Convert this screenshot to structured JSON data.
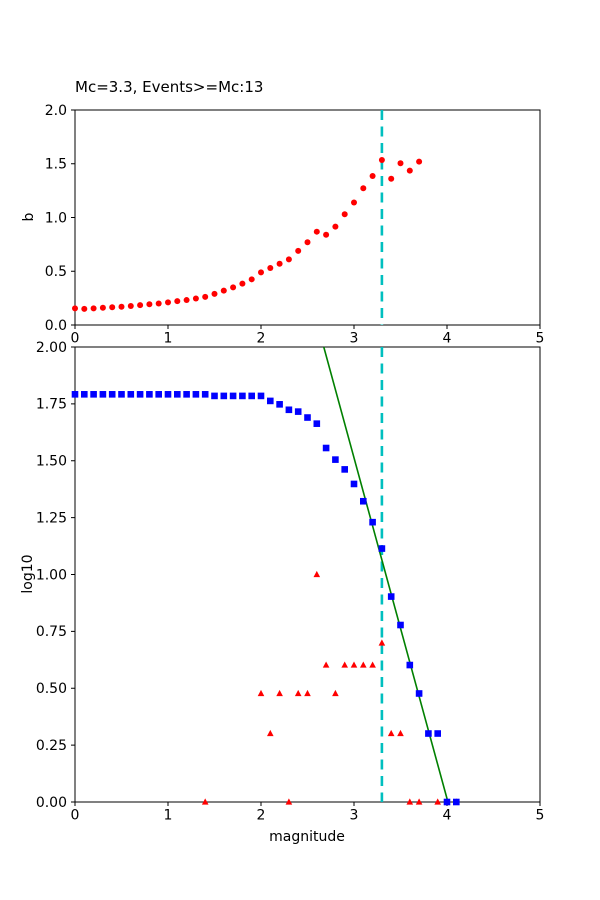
{
  "figure": {
    "background": "#ffffff",
    "axis_color": "#000000",
    "text_color": "#000000"
  },
  "chart_data": [
    {
      "type": "scatter",
      "name": "b-value-stability-plot",
      "title": "Mc=3.3, Events>=Mc:13",
      "xlabel": "",
      "ylabel": "b",
      "xlim": [
        0,
        5
      ],
      "ylim": [
        0.0,
        2.0
      ],
      "xticks": [
        0,
        1,
        2,
        3,
        4,
        5
      ],
      "xtick_labels": [
        "0",
        "1",
        "2",
        "3",
        "4",
        "5"
      ],
      "yticks": [
        0.0,
        0.5,
        1.0,
        1.5,
        2.0
      ],
      "ytick_labels": [
        "0.0",
        "0.5",
        "1.0",
        "1.5",
        "2.0"
      ],
      "grid": false,
      "legend": null,
      "vline": {
        "x": 3.3,
        "color": "#00bfbf",
        "style": "dashed"
      },
      "series": [
        {
          "name": "b-value-estimates",
          "marker": "circle",
          "color": "#ff0000",
          "x": [
            0.0,
            0.1,
            0.2,
            0.3,
            0.4,
            0.5,
            0.6,
            0.7,
            0.8,
            0.9,
            1.0,
            1.1,
            1.2,
            1.3,
            1.4,
            1.5,
            1.6,
            1.7,
            1.8,
            1.9,
            2.0,
            2.1,
            2.2,
            2.3,
            2.4,
            2.5,
            2.6,
            2.7,
            2.8,
            2.9,
            3.0,
            3.1,
            3.2,
            3.3,
            3.4,
            3.5,
            3.6,
            3.7
          ],
          "y": [
            0.155,
            0.15,
            0.155,
            0.16,
            0.165,
            0.17,
            0.177,
            0.185,
            0.193,
            0.2,
            0.21,
            0.222,
            0.232,
            0.247,
            0.262,
            0.29,
            0.32,
            0.35,
            0.385,
            0.425,
            0.49,
            0.53,
            0.57,
            0.61,
            0.69,
            0.77,
            0.868,
            0.84,
            0.915,
            1.03,
            1.14,
            1.272,
            1.386,
            1.535,
            1.36,
            1.505,
            1.436,
            1.52
          ]
        }
      ]
    },
    {
      "type": "scatter",
      "name": "frequency-magnitude-distribution",
      "title": "",
      "xlabel": "magnitude",
      "ylabel": "log10",
      "xlim": [
        0,
        5
      ],
      "ylim": [
        0.0,
        2.0
      ],
      "xticks": [
        0,
        1,
        2,
        3,
        4,
        5
      ],
      "xtick_labels": [
        "0",
        "1",
        "2",
        "3",
        "4",
        "5"
      ],
      "yticks": [
        0.0,
        0.25,
        0.5,
        0.75,
        1.0,
        1.25,
        1.5,
        1.75,
        2.0
      ],
      "ytick_labels": [
        "0.00",
        "0.25",
        "0.50",
        "0.75",
        "1.00",
        "1.25",
        "1.50",
        "1.75",
        "2.00"
      ],
      "grid": false,
      "legend": null,
      "vline": {
        "x": 3.3,
        "color": "#00bfbf",
        "style": "dashed"
      },
      "series": [
        {
          "name": "gr-fit-line",
          "marker": "line",
          "color": "#008000",
          "x": [
            2.675,
            4.01
          ],
          "y": [
            2.0,
            0.0
          ]
        },
        {
          "name": "bin-counts-log10",
          "marker": "triangle",
          "color": "#ff0000",
          "x": [
            1.4,
            2.0,
            2.1,
            2.2,
            2.3,
            2.4,
            2.5,
            2.6,
            2.7,
            2.8,
            2.9,
            3.0,
            3.1,
            3.2,
            3.3,
            3.4,
            3.5,
            3.6,
            3.7,
            3.9,
            4.1
          ],
          "y": [
            0.0,
            0.477,
            0.301,
            0.477,
            0.0,
            0.477,
            0.477,
            1.0,
            0.602,
            0.477,
            0.602,
            0.602,
            0.602,
            0.602,
            0.699,
            0.301,
            0.301,
            0.0,
            0.0,
            0.0,
            0.0
          ]
        },
        {
          "name": "cumulative-counts-log10",
          "marker": "square",
          "color": "#0000ff",
          "x": [
            0.0,
            0.1,
            0.2,
            0.3,
            0.4,
            0.5,
            0.6,
            0.7,
            0.8,
            0.9,
            1.0,
            1.1,
            1.2,
            1.3,
            1.4,
            1.5,
            1.6,
            1.7,
            1.8,
            1.9,
            2.0,
            2.1,
            2.2,
            2.3,
            2.4,
            2.5,
            2.6,
            2.7,
            2.8,
            2.9,
            3.0,
            3.1,
            3.2,
            3.3,
            3.4,
            3.5,
            3.6,
            3.7,
            3.8,
            3.9,
            4.0,
            4.1
          ],
          "y": [
            1.792,
            1.792,
            1.792,
            1.792,
            1.792,
            1.792,
            1.792,
            1.792,
            1.792,
            1.792,
            1.792,
            1.792,
            1.792,
            1.792,
            1.792,
            1.785,
            1.785,
            1.785,
            1.785,
            1.785,
            1.785,
            1.763,
            1.748,
            1.724,
            1.716,
            1.69,
            1.663,
            1.556,
            1.505,
            1.462,
            1.398,
            1.322,
            1.23,
            1.114,
            0.903,
            0.778,
            0.602,
            0.477,
            0.301,
            0.301,
            0.0,
            0.0
          ]
        }
      ]
    }
  ]
}
